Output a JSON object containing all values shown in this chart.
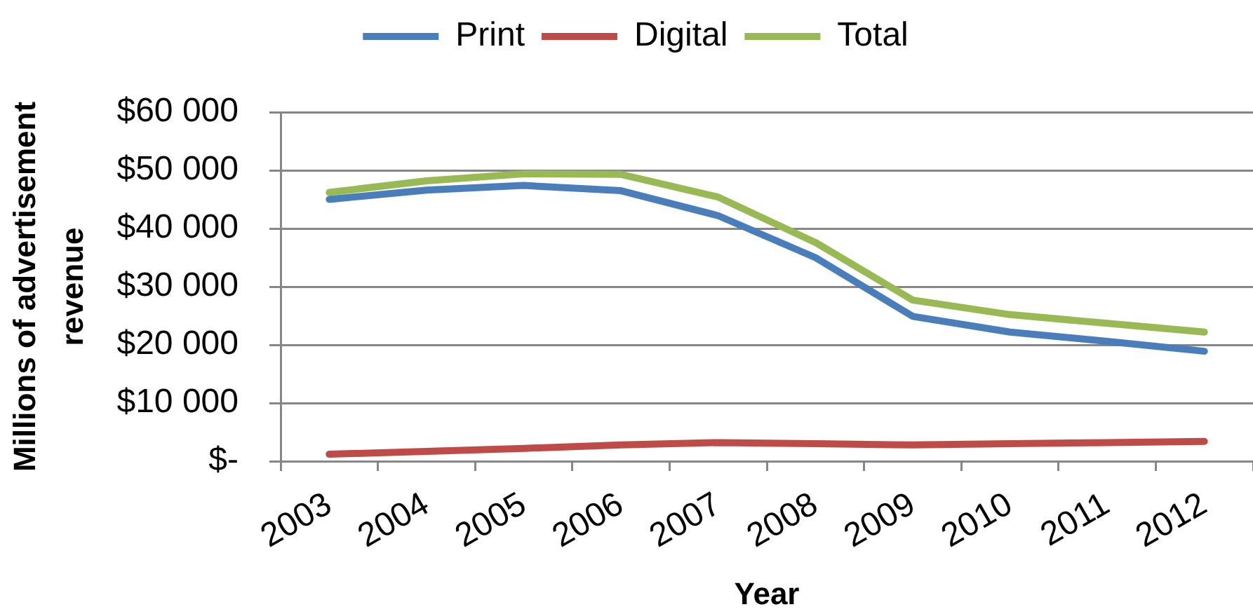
{
  "chart_data": {
    "type": "line",
    "xlabel": "Year",
    "ylabel": "Millions of advertisement revenue",
    "categories": [
      "2003",
      "2004",
      "2005",
      "2006",
      "2007",
      "2008",
      "2009",
      "2010",
      "2011",
      "2012"
    ],
    "series": [
      {
        "name": "Print",
        "color": "#4a7ebb",
        "values": [
          45000,
          46600,
          47400,
          46500,
          42200,
          35000,
          24900,
          22200,
          20600,
          18900
        ]
      },
      {
        "name": "Digital",
        "color": "#be4b48",
        "values": [
          1200,
          1700,
          2200,
          2800,
          3200,
          3000,
          2800,
          3000,
          3200,
          3400
        ]
      },
      {
        "name": "Total",
        "color": "#98b954",
        "values": [
          46200,
          48200,
          49400,
          49300,
          45400,
          37600,
          27700,
          25200,
          23700,
          22200
        ]
      }
    ],
    "ylim": [
      0,
      60000
    ],
    "yticks": [
      {
        "value": 0,
        "label": "$-"
      },
      {
        "value": 10000,
        "label": "$10 000"
      },
      {
        "value": 20000,
        "label": "$20 000"
      },
      {
        "value": 30000,
        "label": "$30 000"
      },
      {
        "value": 40000,
        "label": "$40 000"
      },
      {
        "value": 50000,
        "label": "$50 000"
      },
      {
        "value": 60000,
        "label": "$60 000"
      }
    ],
    "grid": "y",
    "legend": "top",
    "marker": "none",
    "line_style": "solid"
  }
}
